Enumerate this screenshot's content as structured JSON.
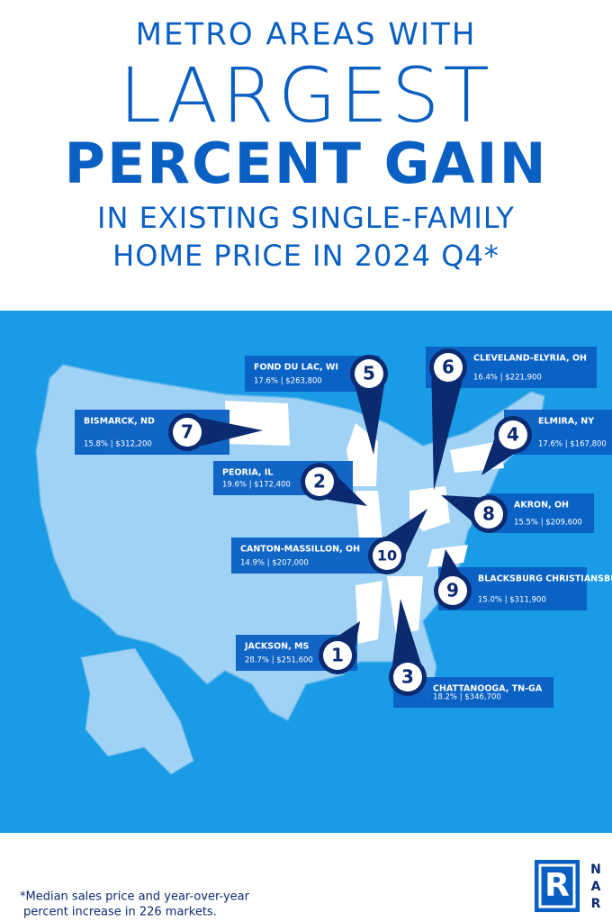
{
  "header": {
    "lines": [
      "METRO AREAS WITH",
      "LARGEST",
      "PERCENT GAIN",
      "IN EXISTING SINGLE-FAMILY",
      "HOME PRICE IN 2024 Q4*"
    ]
  },
  "metros": [
    {
      "rank": "1",
      "name": "JACKSON, MS",
      "detail": "28.7% | $251,600"
    },
    {
      "rank": "2",
      "name": "PEORIA, IL",
      "detail": "19.6% | $172,400"
    },
    {
      "rank": "3",
      "name": "CHATTANOOGA, TN-GA",
      "detail": "18.2% | $346,700"
    },
    {
      "rank": "4",
      "name": "ELMIRA, NY",
      "detail": "17.6% | $167,800"
    },
    {
      "rank": "5",
      "name": "FOND DU LAC, WI",
      "detail": "17.6% | $263,800"
    },
    {
      "rank": "6",
      "name": "CLEVELAND-ELYRIA, OH",
      "detail": "16.4% | $221,900"
    },
    {
      "rank": "7",
      "name": "BISMARCK, ND",
      "detail": "15.8% | $312,200"
    },
    {
      "rank": "8",
      "name": "AKRON, OH",
      "detail": "15.5% | $209,600"
    },
    {
      "rank": "9",
      "name": "BLACKSBURG CHRISTIANSBURG, VA",
      "detail": "15.0% | $311,900"
    },
    {
      "rank": "10",
      "name": "CANTON-MASSILLON, OH",
      "detail": "14.9% | $207,000"
    }
  ],
  "footnote": [
    "*Median sales price and year-over-year",
    "percent increase in 226 markets."
  ],
  "logo": {
    "mark": "R",
    "letters": [
      "N",
      "A",
      "R"
    ]
  }
}
